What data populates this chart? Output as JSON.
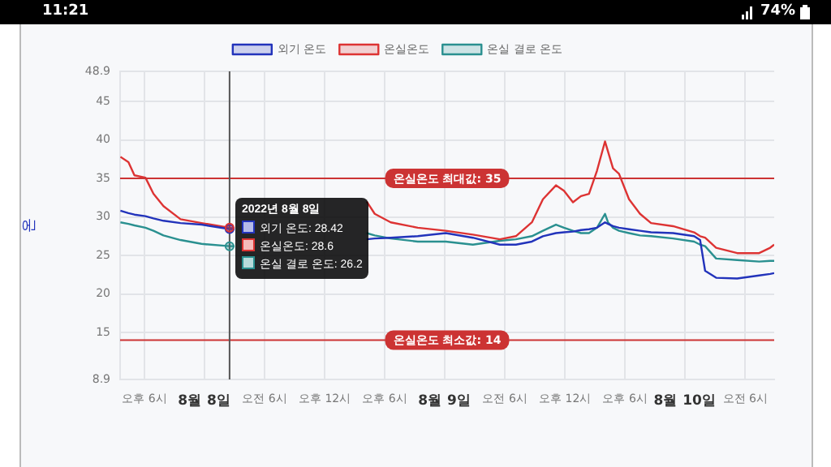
{
  "chart_data": {
    "type": "line",
    "ylabel": "온",
    "x": [
      "2022-08-07T15:36",
      "2022-08-07T16:24",
      "2022-08-07T17:00",
      "2022-08-07T18:06",
      "2022-08-07T18:54",
      "2022-08-07T19:54",
      "2022-08-07T21:36",
      "2022-08-07T23:42",
      "2022-08-08T02:30",
      "2022-08-08T03:00",
      "2022-08-08T09:00",
      "2022-08-08T16:12",
      "2022-08-08T17:00",
      "2022-08-08T18:36",
      "2022-08-08T21:18",
      "2022-08-09T00:06",
      "2022-08-09T02:48",
      "2022-08-09T05:30",
      "2022-08-09T07:06",
      "2022-08-09T08:42",
      "2022-08-09T09:48",
      "2022-08-09T11:06",
      "2022-08-09T11:54",
      "2022-08-09T12:48",
      "2022-08-09T13:36",
      "2022-08-09T14:24",
      "2022-08-09T15:12",
      "2022-08-09T16:00",
      "2022-08-09T16:18",
      "2022-08-09T16:48",
      "2022-08-09T17:24",
      "2022-08-09T18:24",
      "2022-08-09T19:30",
      "2022-08-09T20:36",
      "2022-08-09T22:48",
      "2022-08-10T00:54",
      "2022-08-10T01:30",
      "2022-08-10T02:00",
      "2022-08-10T03:06",
      "2022-08-10T05:12",
      "2022-08-10T07:24",
      "2022-08-10T08:30",
      "2022-08-10T08:54"
    ],
    "series": [
      {
        "name": "외기 온도",
        "color": "#2233bb",
        "values": [
          30.8,
          30.5,
          30.3,
          30.1,
          29.8,
          29.5,
          29.2,
          29.0,
          28.42,
          28.4,
          null,
          27.1,
          27.2,
          27.3,
          27.5,
          27.9,
          27.3,
          26.4,
          26.4,
          26.8,
          27.5,
          27.9,
          28.0,
          28.1,
          28.3,
          28.4,
          28.6,
          29.3,
          29.1,
          28.8,
          28.6,
          28.4,
          28.2,
          28.0,
          27.9,
          27.5,
          27.0,
          23.0,
          22.1,
          22.0,
          22.4,
          22.6,
          22.7
        ]
      },
      {
        "name": "온실온도",
        "color": "#dd3333",
        "values": [
          37.8,
          37.1,
          35.4,
          35.1,
          33.0,
          31.4,
          29.7,
          29.2,
          28.6,
          28.5,
          null,
          32.0,
          30.4,
          29.3,
          28.6,
          28.2,
          27.7,
          27.1,
          27.5,
          29.3,
          32.3,
          34.1,
          33.4,
          31.9,
          32.7,
          33.0,
          36.0,
          39.8,
          38.5,
          36.3,
          35.6,
          32.3,
          30.4,
          29.2,
          28.8,
          28.0,
          27.5,
          27.3,
          26.0,
          25.3,
          25.3,
          26.0,
          26.4
        ]
      },
      {
        "name": "온실 결로 온도",
        "color": "#2a9090",
        "values": [
          29.3,
          29.1,
          28.9,
          28.6,
          28.2,
          27.6,
          27.0,
          26.5,
          26.2,
          26.2,
          null,
          27.9,
          27.6,
          27.2,
          26.8,
          26.8,
          26.4,
          26.9,
          27.1,
          27.5,
          28.2,
          29.0,
          28.6,
          28.2,
          27.9,
          27.9,
          28.6,
          30.4,
          29.3,
          28.6,
          28.2,
          27.9,
          27.6,
          27.5,
          27.2,
          26.8,
          26.4,
          26.2,
          24.6,
          24.4,
          24.2,
          24.3,
          24.3
        ]
      }
    ],
    "xlim": [
      "2022-08-07T15:34",
      "2022-08-10T08:54"
    ],
    "xticks": [
      {
        "value": "2022-08-07T18:00",
        "label": "오후 6시"
      },
      {
        "value": "2022-08-08T00:00",
        "label": "8월 8일"
      },
      {
        "value": "2022-08-08T06:00",
        "label": "오전 6시"
      },
      {
        "value": "2022-08-08T12:00",
        "label": "오후 12시"
      },
      {
        "value": "2022-08-08T18:00",
        "label": "오후 6시"
      },
      {
        "value": "2022-08-09T00:00",
        "label": "8월 9일"
      },
      {
        "value": "2022-08-09T06:00",
        "label": "오전 6시"
      },
      {
        "value": "2022-08-09T12:00",
        "label": "오후 12시"
      },
      {
        "value": "2022-08-09T18:00",
        "label": "오후 6시"
      },
      {
        "value": "2022-08-10T00:00",
        "label": "8월 10일"
      },
      {
        "value": "2022-08-10T06:00",
        "label": "오전 6시"
      }
    ],
    "ylim": [
      8.9,
      48.9
    ],
    "yticks": [
      8.9,
      15,
      20,
      25,
      30,
      35,
      40,
      45,
      48.9
    ],
    "ref_lines": [
      {
        "axis": "y",
        "value": 35,
        "label": "온실온도 최대값: 35",
        "color": "#cc3333"
      },
      {
        "axis": "y",
        "value": 14,
        "label": "온실온도 최소값: 14",
        "color": "#cc3333"
      },
      {
        "axis": "x",
        "value": "2022-08-08T02:30",
        "color": "#555555"
      }
    ],
    "annotations": [
      "11:21",
      "74%",
      "2022년 8월 8일",
      "외기 온도: 28.42",
      "온실온도: 28.6",
      "온실 결로 온도: 26.2"
    ],
    "grid": true,
    "legend": "top",
    "marker": "none",
    "line_style": "solid"
  }
}
